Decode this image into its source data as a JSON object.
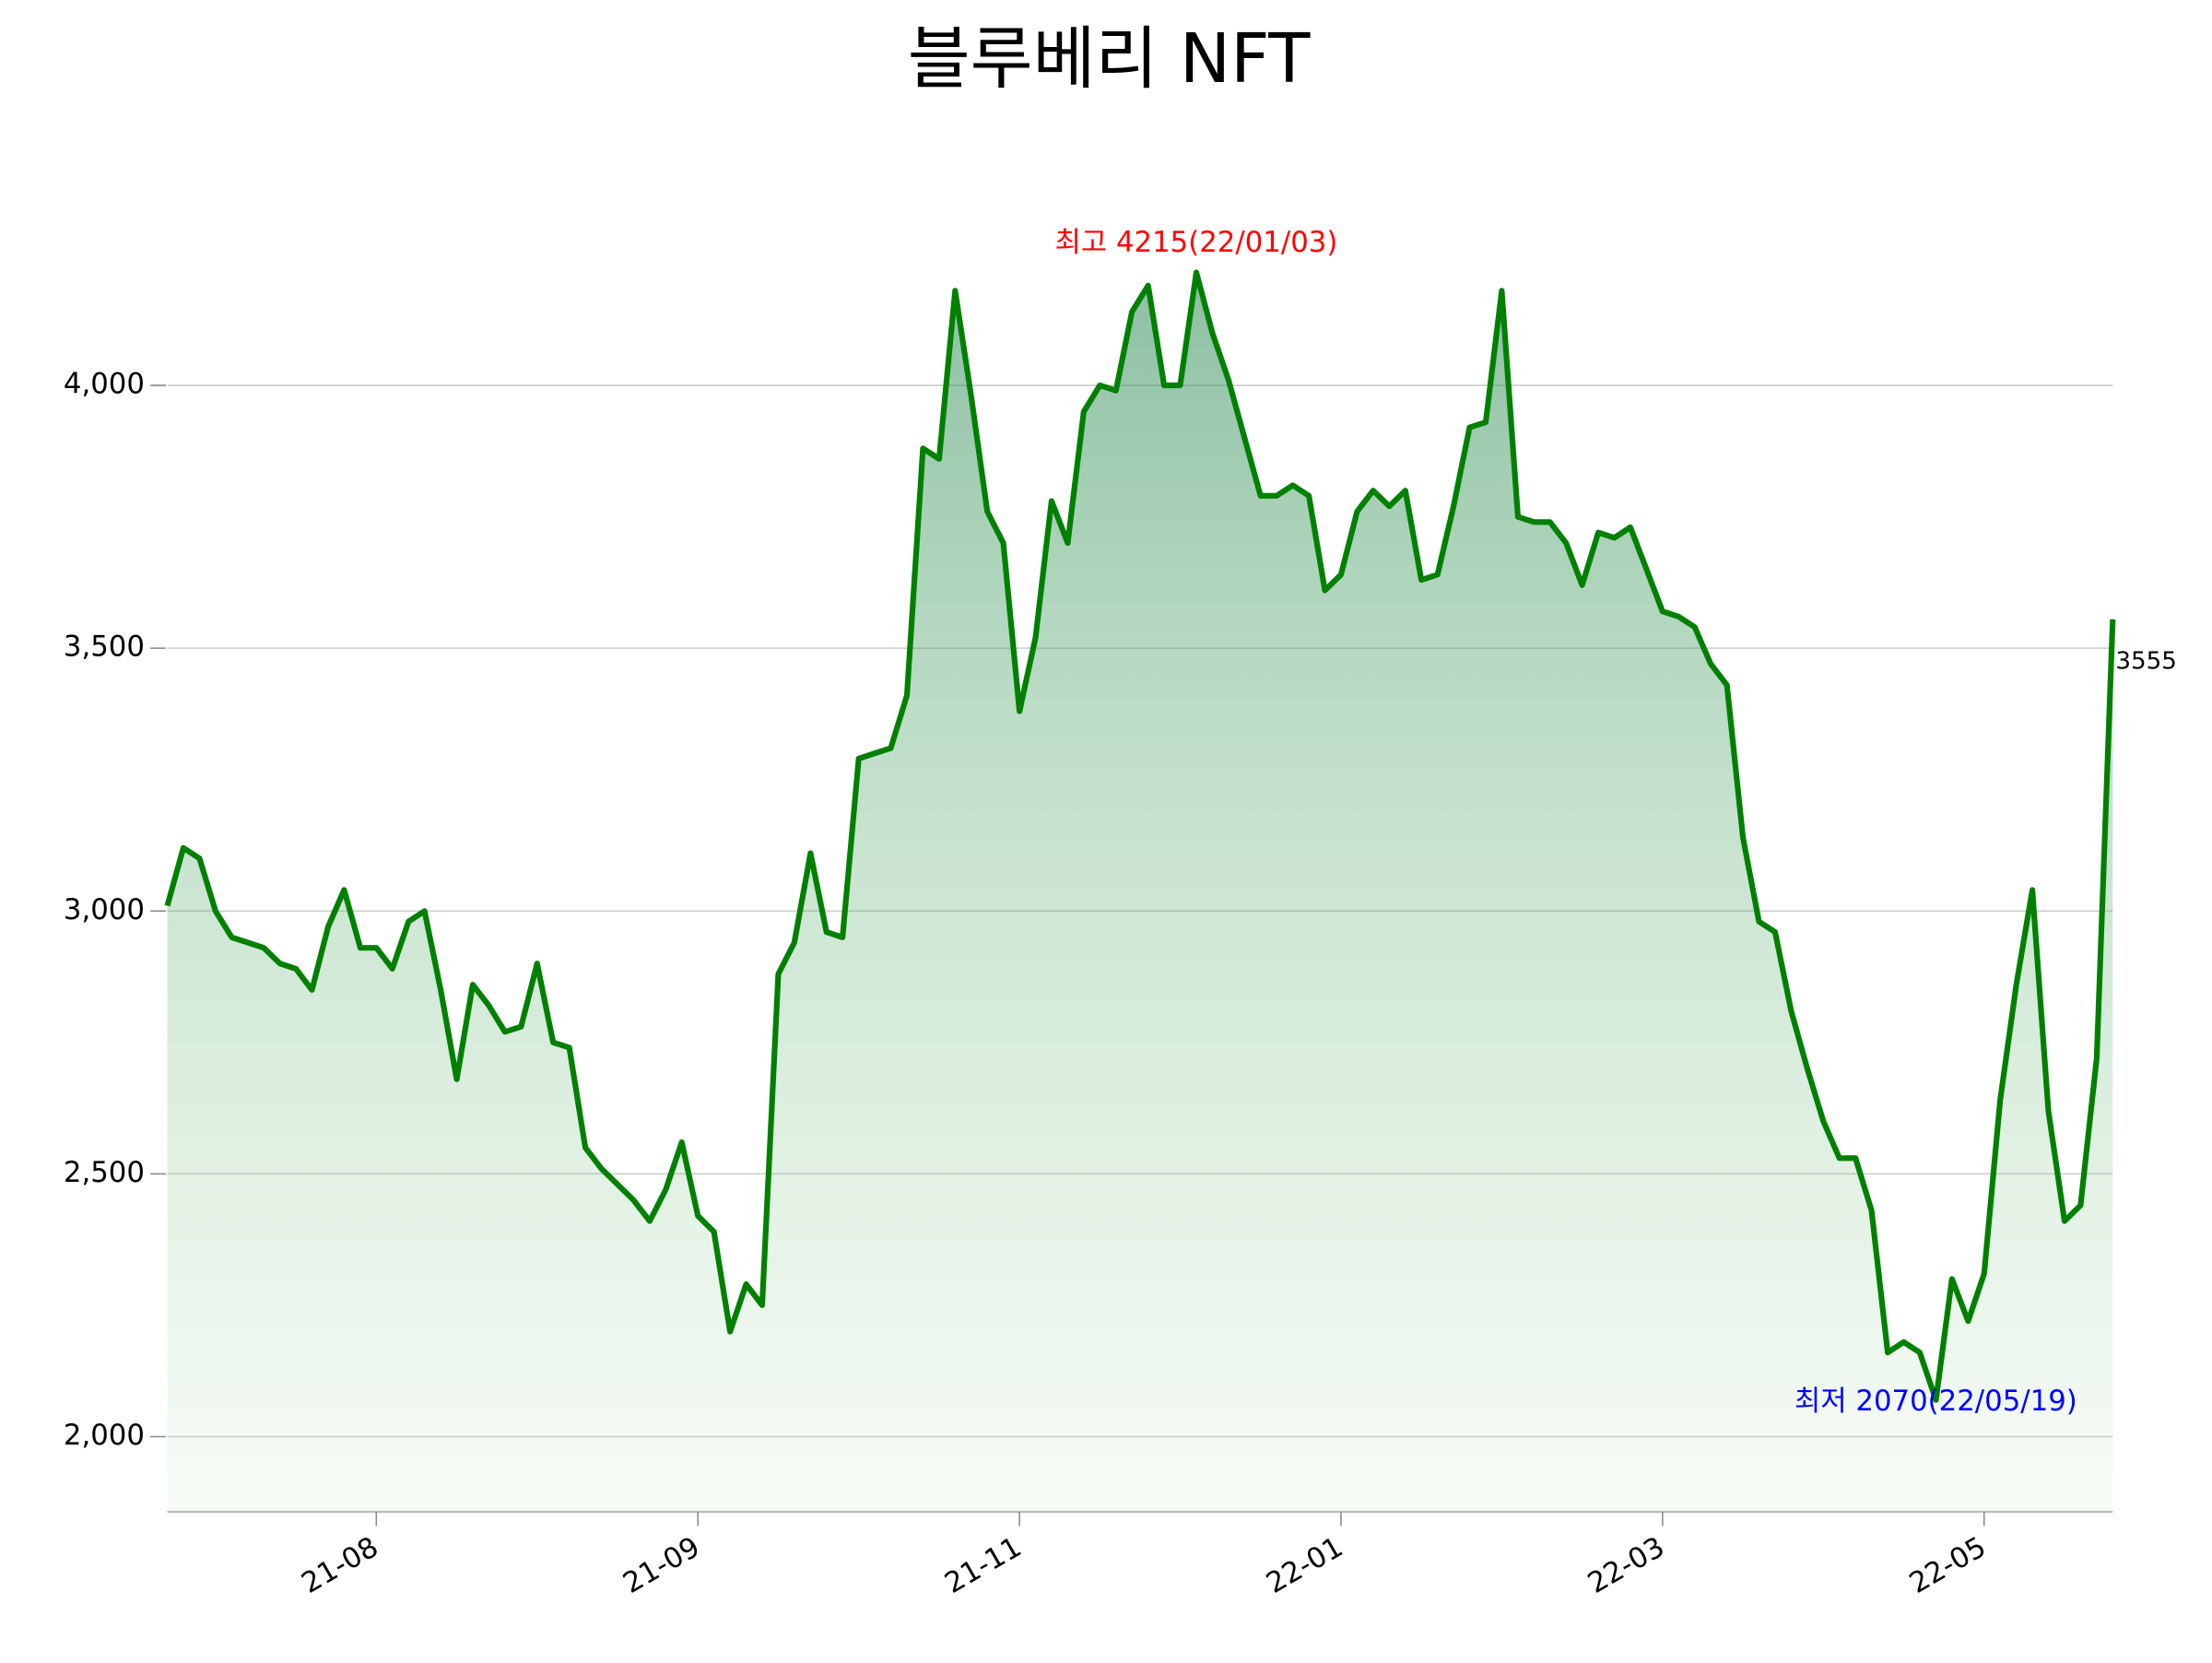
{
  "chart_data": {
    "type": "line",
    "title": "블루베리 NFT",
    "categories": [
      null,
      null,
      null,
      null,
      null,
      null,
      null,
      null,
      null,
      null,
      null,
      null,
      null,
      "21-08",
      null,
      null,
      null,
      null,
      null,
      null,
      null,
      null,
      null,
      null,
      null,
      null,
      null,
      null,
      null,
      null,
      null,
      null,
      null,
      "21-09",
      null,
      null,
      null,
      null,
      null,
      null,
      null,
      null,
      null,
      null,
      null,
      null,
      null,
      null,
      null,
      null,
      null,
      null,
      null,
      "21-11",
      null,
      null,
      null,
      null,
      null,
      null,
      null,
      null,
      null,
      null,
      null,
      null,
      null,
      null,
      null,
      null,
      null,
      null,
      null,
      "22-01",
      null,
      null,
      null,
      null,
      null,
      null,
      null,
      null,
      null,
      null,
      null,
      null,
      null,
      null,
      null,
      null,
      null,
      null,
      null,
      "22-03",
      null,
      null,
      null,
      null,
      null,
      null,
      null,
      null,
      null,
      null,
      null,
      null,
      null,
      null,
      null,
      null,
      null,
      null,
      null,
      "22-05",
      null,
      null,
      null,
      null,
      null,
      null,
      null,
      null
    ],
    "series": [
      {
        "color": "#008000",
        "values": [
          3010,
          3120,
          3100,
          3000,
          2950,
          2940,
          2930,
          2900,
          2890,
          2850,
          2970,
          3040,
          2930,
          2930,
          2890,
          2980,
          3000,
          2850,
          2680,
          2860,
          2820,
          2770,
          2780,
          2900,
          2750,
          2740,
          2550,
          2510,
          2480,
          2450,
          2410,
          2470,
          2560,
          2420,
          2390,
          2200,
          2290,
          2250,
          2880,
          2940,
          3110,
          2960,
          2950,
          3290,
          3300,
          3310,
          3410,
          3880,
          3860,
          4180,
          3980,
          3760,
          3700,
          3380,
          3520,
          3780,
          3700,
          3950,
          4000,
          3990,
          4140,
          4190,
          4000,
          4000,
          4215,
          4100,
          4010,
          3900,
          3790,
          3790,
          3810,
          3790,
          3610,
          3640,
          3760,
          3800,
          3770,
          3800,
          3630,
          3640,
          3770,
          3920,
          3930,
          4180,
          3750,
          3740,
          3740,
          3700,
          3620,
          3720,
          3710,
          3730,
          3650,
          3570,
          3560,
          3540,
          3470,
          3430,
          3140,
          2980,
          2960,
          2810,
          2700,
          2600,
          2530,
          2530,
          2430,
          2160,
          2180,
          2160,
          2070,
          2300,
          2220,
          2310,
          2640,
          2860,
          3040,
          2620,
          2410,
          2440,
          2720,
          3555
        ]
      }
    ],
    "ylim": [
      1857,
      4400
    ],
    "yticks": [
      {
        "value": 2000,
        "label": "2,000"
      },
      {
        "value": 2500,
        "label": "2,500"
      },
      {
        "value": 3000,
        "label": "3,000"
      },
      {
        "value": 3500,
        "label": "3,500"
      },
      {
        "value": 4000,
        "label": "4,000"
      }
    ],
    "grid": true,
    "annotations": [
      {
        "text": "최고 4215(22/01/03)",
        "color": "#ff0000"
      },
      {
        "text": "최저 2070(22/05/19)",
        "color": "#0000ff"
      }
    ]
  }
}
